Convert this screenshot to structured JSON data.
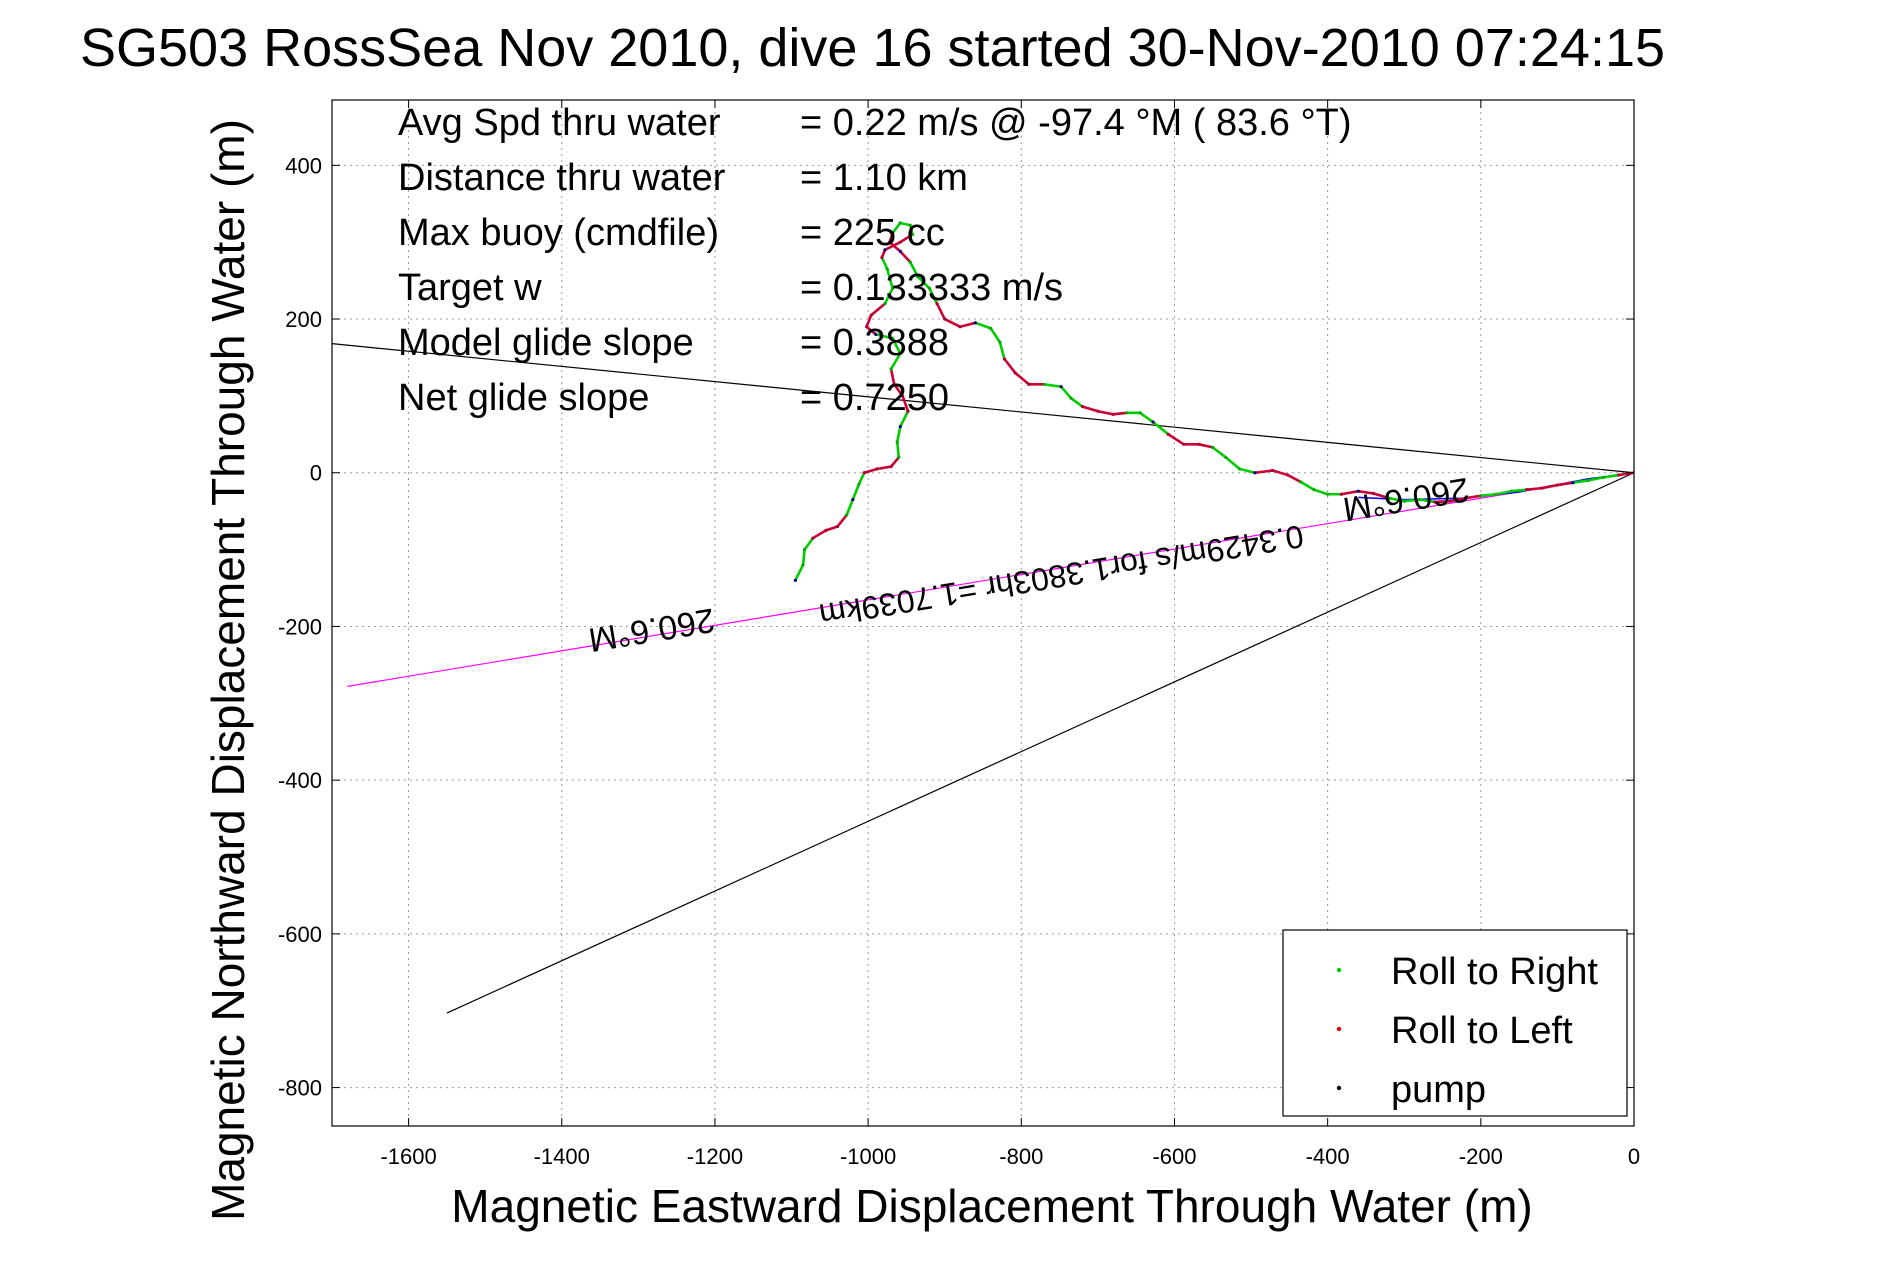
{
  "chart_data": {
    "type": "scatter",
    "title": "SG503 RossSea Nov 2010, dive 16 started 30-Nov-2010 07:24:15",
    "xlabel": "Magnetic Eastward Displacement Through Water (m)",
    "ylabel": "Magnetic Northward Displacement Through Water (m)",
    "xlim": [
      -1700,
      0
    ],
    "ylim": [
      -850,
      485
    ],
    "xticks": [
      -1600,
      -1400,
      -1200,
      -1000,
      -800,
      -600,
      -400,
      -200,
      0
    ],
    "yticks": [
      -800,
      -600,
      -400,
      -200,
      0,
      200,
      400
    ],
    "xtick_labels": [
      "-1600",
      "-1400",
      "-1200",
      "-1000",
      "-800",
      "-600",
      "-400",
      "-200",
      "0"
    ],
    "ytick_labels": [
      "-800",
      "-600",
      "-400",
      "-200",
      "0",
      "200",
      "400"
    ],
    "grid": true,
    "legend_position": "bottom-right",
    "stats": [
      {
        "label": "Avg Spd thru water",
        "value": "=  0.22 m/s @ -97.4 °M ( 83.6 °T)"
      },
      {
        "label": "Distance thru water",
        "value": "=  1.10 km"
      },
      {
        "label": "Max buoy (cmdfile)",
        "value": "= 225 cc"
      },
      {
        "label": "Target w",
        "value": "= 0.133333 m/s"
      },
      {
        "label": "Model glide slope",
        "value": "= 0.3888"
      },
      {
        "label": "Net glide slope",
        "value": "= 0.7250"
      }
    ],
    "annotations": [
      {
        "text": "260.6°M",
        "x": -1285,
        "y": -190,
        "rotation_deg": 170.6
      },
      {
        "text": "0.3429m/s for1.3803hr =1.7039km",
        "x": -750,
        "y": -120,
        "rotation_deg": 170.6
      },
      {
        "text": "260.6°M",
        "x": -300,
        "y": -20,
        "rotation_deg": 170.6
      }
    ],
    "lines": [
      {
        "name": "current-line",
        "color": "#ff00ff",
        "points": [
          [
            0,
            0
          ],
          [
            -1680,
            -278
          ]
        ]
      },
      {
        "name": "net-glide-line",
        "color": "#000000",
        "points": [
          [
            0,
            0
          ],
          [
            -1700,
            168
          ]
        ]
      },
      {
        "name": "model-glide-line",
        "color": "#000000",
        "points": [
          [
            0,
            0
          ],
          [
            -1550,
            -703
          ]
        ]
      },
      {
        "name": "current-tip-line",
        "color": "#0000ff",
        "points": [
          [
            0,
            0
          ],
          [
            -60,
            -8
          ],
          [
            -150,
            -25
          ],
          [
            -220,
            -33
          ],
          [
            -300,
            -35
          ],
          [
            -360,
            -32
          ]
        ]
      }
    ],
    "track": [
      [
        -1095,
        -140
      ],
      [
        -1085,
        -120
      ],
      [
        -1083,
        -100
      ],
      [
        -1072,
        -85
      ],
      [
        -1055,
        -75
      ],
      [
        -1040,
        -70
      ],
      [
        -1028,
        -55
      ],
      [
        -1020,
        -35
      ],
      [
        -1012,
        -15
      ],
      [
        -1005,
        0
      ],
      [
        -988,
        5
      ],
      [
        -970,
        8
      ],
      [
        -960,
        20
      ],
      [
        -962,
        40
      ],
      [
        -958,
        60
      ],
      [
        -948,
        80
      ],
      [
        -955,
        100
      ],
      [
        -966,
        115
      ],
      [
        -970,
        135
      ],
      [
        -958,
        155
      ],
      [
        -968,
        175
      ],
      [
        -990,
        180
      ],
      [
        -1002,
        190
      ],
      [
        -996,
        205
      ],
      [
        -978,
        220
      ],
      [
        -968,
        240
      ],
      [
        -975,
        265
      ],
      [
        -982,
        280
      ],
      [
        -978,
        290
      ],
      [
        -958,
        300
      ],
      [
        -942,
        310
      ],
      [
        -945,
        322
      ],
      [
        -958,
        325
      ],
      [
        -968,
        312
      ],
      [
        -972,
        300
      ],
      [
        -958,
        288
      ],
      [
        -945,
        274
      ],
      [
        -935,
        255
      ],
      [
        -920,
        240
      ],
      [
        -910,
        220
      ],
      [
        -900,
        200
      ],
      [
        -880,
        190
      ],
      [
        -860,
        195
      ],
      [
        -840,
        188
      ],
      [
        -828,
        170
      ],
      [
        -822,
        148
      ],
      [
        -808,
        130
      ],
      [
        -790,
        115
      ],
      [
        -770,
        115
      ],
      [
        -748,
        112
      ],
      [
        -735,
        97
      ],
      [
        -720,
        86
      ],
      [
        -700,
        80
      ],
      [
        -680,
        76
      ],
      [
        -662,
        78
      ],
      [
        -645,
        78
      ],
      [
        -628,
        66
      ],
      [
        -608,
        50
      ],
      [
        -588,
        37
      ],
      [
        -568,
        37
      ],
      [
        -550,
        33
      ],
      [
        -533,
        20
      ],
      [
        -515,
        5
      ],
      [
        -495,
        0
      ],
      [
        -472,
        3
      ],
      [
        -452,
        -3
      ],
      [
        -435,
        -12
      ],
      [
        -418,
        -22
      ],
      [
        -400,
        -28
      ],
      [
        -382,
        -28
      ],
      [
        -360,
        -24
      ],
      [
        -340,
        -27
      ],
      [
        -320,
        -33
      ],
      [
        -300,
        -37
      ],
      [
        -280,
        -35
      ],
      [
        -260,
        -38
      ],
      [
        -240,
        -37
      ],
      [
        -220,
        -33
      ],
      [
        -200,
        -30
      ],
      [
        -180,
        -28
      ],
      [
        -160,
        -24
      ],
      [
        -140,
        -22
      ],
      [
        -120,
        -20
      ],
      [
        -100,
        -16
      ],
      [
        -80,
        -13
      ],
      [
        -60,
        -10
      ],
      [
        -40,
        -6
      ],
      [
        -20,
        -3
      ],
      [
        0,
        0
      ]
    ],
    "legend": [
      {
        "label": "Roll to Right",
        "color": "#00cc00"
      },
      {
        "label": "Roll to Left",
        "color": "#ee0000"
      },
      {
        "label": "pump",
        "color": "#000000"
      }
    ]
  }
}
